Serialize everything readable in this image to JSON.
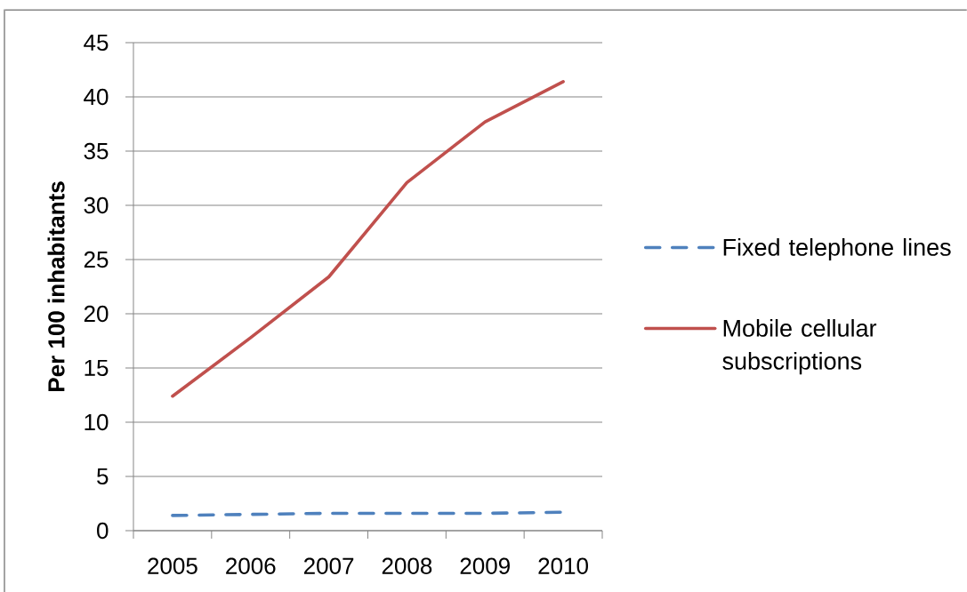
{
  "chart_data": {
    "type": "line",
    "ylabel": "Per 100 inhabitants",
    "categories": [
      "2005",
      "2006",
      "2007",
      "2008",
      "2009",
      "2010"
    ],
    "series": [
      {
        "name": "Fixed telephone lines",
        "color": "#4f81bd",
        "line_style": "dashed",
        "values": [
          1.4,
          1.5,
          1.6,
          1.6,
          1.6,
          1.7
        ]
      },
      {
        "name": "Mobile cellular subscriptions",
        "color": "#c0504d",
        "line_style": "solid",
        "values": [
          12.4,
          17.8,
          23.4,
          32.1,
          37.7,
          41.4
        ]
      }
    ],
    "ylim": [
      0,
      45
    ],
    "yticks": [
      0,
      5,
      10,
      15,
      20,
      25,
      30,
      35,
      40,
      45
    ],
    "grid": "y",
    "legend": "right"
  }
}
